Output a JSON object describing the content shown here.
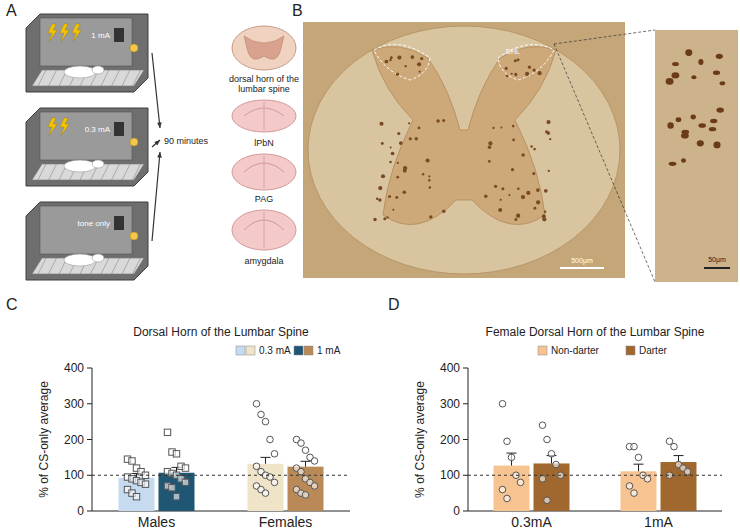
{
  "panels": {
    "labels": [
      "A",
      "B",
      "C",
      "D"
    ]
  },
  "diagram": {
    "conditions": [
      "1 mA",
      "0.3 mA",
      "tone only"
    ],
    "interval": "90 minutes",
    "regions": [
      "dorsal horn of the lumbar spine",
      "lPbN",
      "PAG",
      "amygdala"
    ]
  },
  "histology": {
    "region_label": "DHL",
    "scale_bar": "500µm",
    "inset_scale_bar": "50µm"
  },
  "chart_data": [
    {
      "type": "bar",
      "title": "Dorsal Horn of the Lumbar Spine",
      "y_label": "% of CS-only average",
      "categories": [
        "Males",
        "Females"
      ],
      "series": [
        {
          "name": "0.3 mA",
          "colors": [
            "#c6dbef",
            "#efe4c8"
          ],
          "values": [
            93,
            132
          ],
          "errors": [
            12,
            18
          ],
          "points": [
            [
              145,
              140,
              120,
              110,
              100,
              95,
              90,
              85,
              80,
              75,
              60,
              50,
              40
            ],
            [
              300,
              270,
              250,
              200,
              160,
              125,
              110,
              100,
              95,
              80,
              70,
              60,
              50
            ]
          ]
        },
        {
          "name": "1 mA",
          "colors": [
            "#1f5673",
            "#b98a57"
          ],
          "values": [
            107,
            124
          ],
          "errors": [
            15,
            15
          ],
          "points": [
            [
              220,
              165,
              160,
              125,
              120,
              110,
              105,
              100,
              90,
              80,
              70,
              65,
              40
            ],
            [
              200,
              190,
              170,
              150,
              140,
              120,
              110,
              90,
              80,
              70,
              60,
              50,
              45
            ]
          ]
        }
      ],
      "reference_line": 100,
      "ylim": [
        0,
        400
      ],
      "yticks": [
        0,
        100,
        200,
        300,
        400
      ],
      "legend": "top"
    },
    {
      "type": "bar",
      "title": "Female Dorsal Horn of the Lumbar Spine",
      "y_label": "% of CS-only average",
      "categories": [
        "0.3mA",
        "1mA"
      ],
      "series": [
        {
          "name": "Non-darter",
          "color": "#f6c391",
          "values": [
            127,
            111
          ],
          "errors": [
            35,
            20
          ],
          "points": [
            [
              300,
              195,
              150,
              100,
              80,
              60,
              35
            ],
            [
              180,
              180,
              150,
              100,
              90,
              70,
              50
            ]
          ]
        },
        {
          "name": "Darter",
          "color": "#a0682e",
          "values": [
            133,
            137
          ],
          "errors": [
            22,
            18
          ],
          "points": [
            [
              240,
              200,
              160,
              130,
              100,
              90,
              30
            ],
            [
              195,
              180,
              130,
              120,
              110,
              100
            ]
          ]
        }
      ],
      "reference_line": 100,
      "ylim": [
        0,
        400
      ],
      "yticks": [
        0,
        100,
        200,
        300,
        400
      ],
      "legend": "top"
    }
  ]
}
